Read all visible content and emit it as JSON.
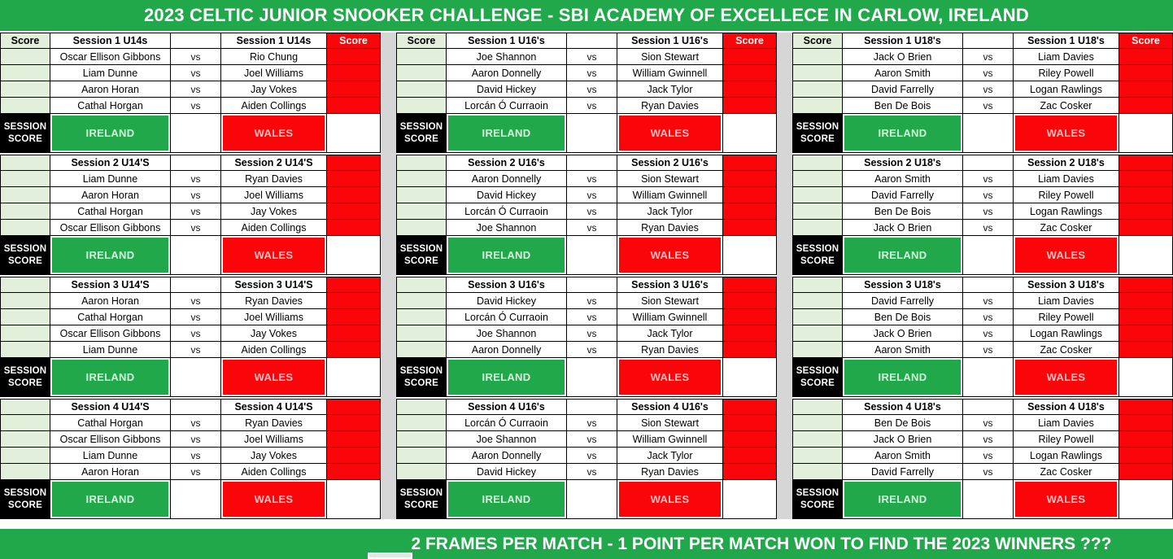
{
  "title": "2023 CELTIC JUNIOR SNOOKER CHALLENGE - SBI ACADEMY OF EXCELLECE IN CARLOW, IRELAND",
  "footer": "2 FRAMES PER MATCH - 1 POINT PER MATCH WON TO FIND THE 2023 WINNERS ???",
  "labels": {
    "score": "Score",
    "vs": "vs",
    "session_score_line1": "SESSION",
    "session_score_line2": "SCORE",
    "home_team": "IRELAND",
    "away_team": "WALES"
  },
  "colors": {
    "banner_green": "#21A84B",
    "score_red": "#FA050A",
    "score_column_light_green": "#E2EFDA",
    "gap_gray": "#D6D6D6",
    "label_black": "#000000"
  },
  "groups": [
    {
      "name": "U14s",
      "sessions": [
        {
          "title": "Session 1 U14s",
          "matches": [
            {
              "home": "Oscar Ellison Gibbons",
              "away": "Rio Chung"
            },
            {
              "home": "Liam Dunne",
              "away": "Joel Williams"
            },
            {
              "home": "Aaron Horan",
              "away": "Jay Vokes"
            },
            {
              "home": "Cathal Horgan",
              "away": "Aiden Collings"
            }
          ]
        },
        {
          "title": "Session 2 U14'S",
          "matches": [
            {
              "home": "Liam Dunne",
              "away": "Ryan Davies"
            },
            {
              "home": "Aaron Horan",
              "away": "Joel Williams"
            },
            {
              "home": "Cathal Horgan",
              "away": "Jay Vokes"
            },
            {
              "home": "Oscar Ellison Gibbons",
              "away": "Aiden Collings"
            }
          ]
        },
        {
          "title": "Session 3 U14'S",
          "matches": [
            {
              "home": "Aaron Horan",
              "away": "Ryan Davies"
            },
            {
              "home": "Cathal Horgan",
              "away": "Joel Williams"
            },
            {
              "home": "Oscar Ellison Gibbons",
              "away": "Jay Vokes"
            },
            {
              "home": "Liam Dunne",
              "away": "Aiden Collings"
            }
          ]
        },
        {
          "title": "Session 4 U14'S",
          "matches": [
            {
              "home": "Cathal Horgan",
              "away": "Ryan Davies"
            },
            {
              "home": "Oscar Ellison Gibbons",
              "away": "Joel Williams"
            },
            {
              "home": "Liam Dunne",
              "away": "Jay Vokes"
            },
            {
              "home": "Aaron Horan",
              "away": "Aiden Collings"
            }
          ]
        }
      ]
    },
    {
      "name": "U16's",
      "sessions": [
        {
          "title": "Session 1 U16's",
          "matches": [
            {
              "home": "Joe Shannon",
              "away": "Sion Stewart"
            },
            {
              "home": "Aaron Donnelly",
              "away": "William Gwinnell"
            },
            {
              "home": "David Hickey",
              "away": "Jack Tylor"
            },
            {
              "home": "Lorcán Ó Curraoin",
              "away": "Ryan Davies"
            }
          ]
        },
        {
          "title": "Session 2 U16's",
          "matches": [
            {
              "home": "Aaron Donnelly",
              "away": "Sion Stewart"
            },
            {
              "home": "David Hickey",
              "away": "William Gwinnell"
            },
            {
              "home": "Lorcán Ó Curraoin",
              "away": "Jack Tylor"
            },
            {
              "home": "Joe Shannon",
              "away": "Ryan Davies"
            }
          ]
        },
        {
          "title": "Session 3 U16's",
          "matches": [
            {
              "home": "David Hickey",
              "away": "Sion Stewart"
            },
            {
              "home": "Lorcán Ó Curraoin",
              "away": "William Gwinnell"
            },
            {
              "home": "Joe Shannon",
              "away": "Jack Tylor"
            },
            {
              "home": "Aaron Donnelly",
              "away": "Ryan Davies"
            }
          ]
        },
        {
          "title": "Session 4 U16's",
          "matches": [
            {
              "home": "Lorcán Ó Curraoin",
              "away": "Sion Stewart"
            },
            {
              "home": "Joe Shannon",
              "away": "William Gwinnell"
            },
            {
              "home": "Aaron Donnelly",
              "away": "Jack Tylor"
            },
            {
              "home": "David Hickey",
              "away": "Ryan Davies"
            }
          ]
        }
      ]
    },
    {
      "name": "U18's",
      "sessions": [
        {
          "title": "Session 1 U18's",
          "matches": [
            {
              "home": "Jack O Brien",
              "away": "Liam Davies"
            },
            {
              "home": "Aaron Smith",
              "away": "Riley Powell"
            },
            {
              "home": "David Farrelly",
              "away": "Logan Rawlings"
            },
            {
              "home": "Ben De Bois",
              "away": "Zac Cosker"
            }
          ]
        },
        {
          "title": "Session 2 U18's",
          "matches": [
            {
              "home": "Aaron Smith",
              "away": "Liam Davies"
            },
            {
              "home": "David Farrelly",
              "away": "Riley Powell"
            },
            {
              "home": "Ben De Bois",
              "away": "Logan Rawlings"
            },
            {
              "home": "Jack O Brien",
              "away": "Zac Cosker"
            }
          ]
        },
        {
          "title": "Session 3 U18's",
          "matches": [
            {
              "home": "David Farrelly",
              "away": "Liam Davies"
            },
            {
              "home": "Ben De Bois",
              "away": "Riley Powell"
            },
            {
              "home": "Jack O Brien",
              "away": "Logan Rawlings"
            },
            {
              "home": "Aaron Smith",
              "away": "Zac Cosker"
            }
          ]
        },
        {
          "title": "Session 4 U18's",
          "matches": [
            {
              "home": "Ben De Bois",
              "away": "Liam Davies"
            },
            {
              "home": "Jack O Brien",
              "away": "Riley Powell"
            },
            {
              "home": "Aaron Smith",
              "away": "Logan Rawlings"
            },
            {
              "home": "David Farrelly",
              "away": "Zac Cosker"
            }
          ]
        }
      ]
    }
  ]
}
